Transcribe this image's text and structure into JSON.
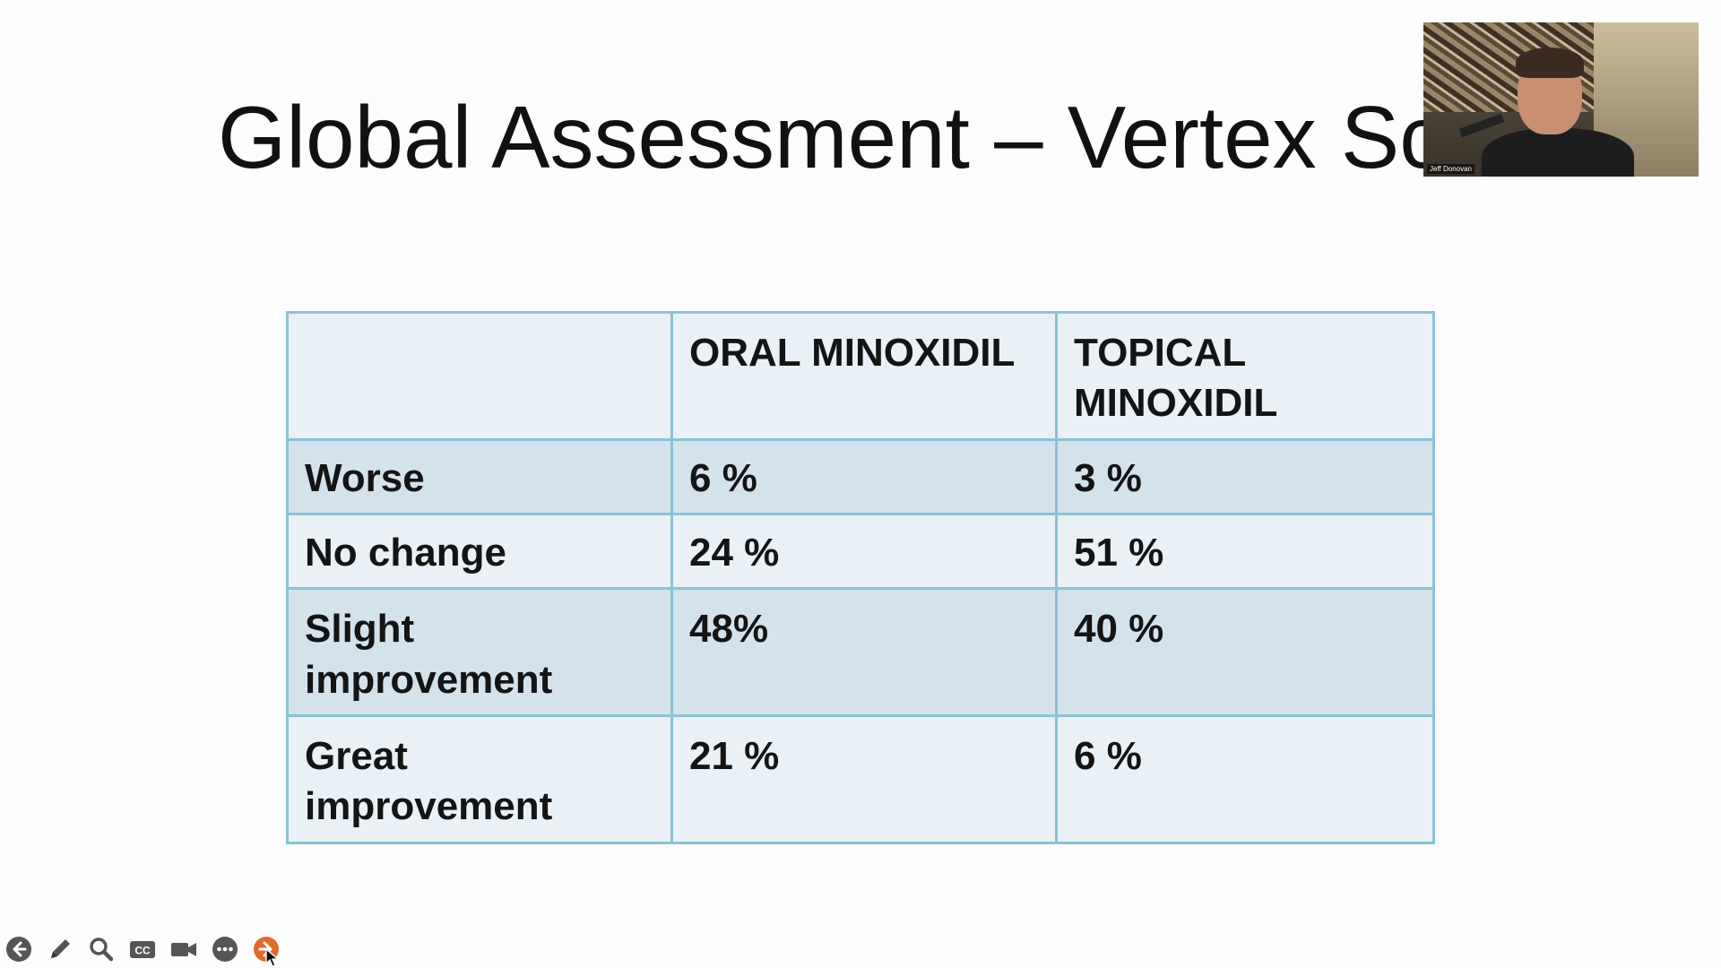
{
  "slide": {
    "title": "Global Assessment – Vertex Sca",
    "table": {
      "header": [
        "",
        "ORAL MINOXIDIL",
        "TOPICAL MINOXIDIL"
      ],
      "rows": [
        [
          "Worse",
          "6 %",
          "3 %"
        ],
        [
          "No change",
          "24 %",
          "51 %"
        ],
        [
          "Slight improvement",
          "48%",
          "40 %"
        ],
        [
          "Great improvement",
          "21 %",
          "6 %"
        ]
      ]
    }
  },
  "webcam": {
    "name_label": "Jeff Donovan"
  },
  "toolbar": {
    "buttons": [
      {
        "icon": "back-arrow-icon"
      },
      {
        "icon": "pen-icon"
      },
      {
        "icon": "zoom-icon"
      },
      {
        "icon": "closed-captions-icon"
      },
      {
        "icon": "camera-icon"
      },
      {
        "icon": "more-icon"
      },
      {
        "icon": "forward-icon",
        "accent": "#e06a2c"
      }
    ]
  },
  "colors": {
    "table_border": "#8cc2d6",
    "row_band_dark": "#d4e2ec",
    "row_band_light": "#eaf1f6",
    "toolbar_icon": "#555555"
  }
}
